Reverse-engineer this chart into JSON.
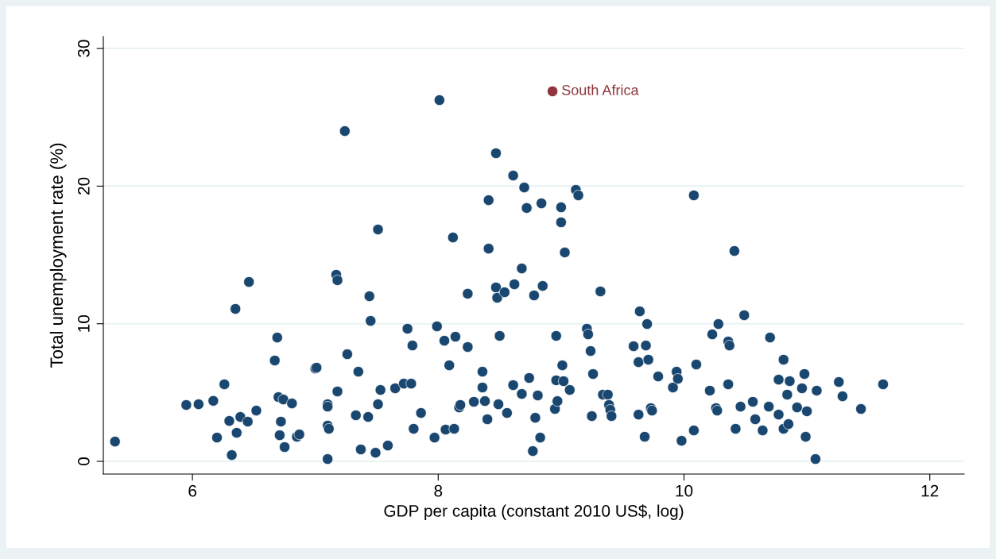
{
  "chart_data": {
    "type": "scatter",
    "xlabel": "GDP per capita (constant 2010 US$, log)",
    "ylabel": "Total unemployment rate (%)",
    "xlim": [
      5.275,
      12.28
    ],
    "ylim": [
      -0.92,
      30.87
    ],
    "xticks": [
      6,
      8,
      10,
      12
    ],
    "yticks": [
      0,
      10,
      20,
      30
    ],
    "grid": "y",
    "marker": "circle",
    "legend": false,
    "series": [
      {
        "color": "#1a476f",
        "x": [
          5.37,
          5.95,
          6.05,
          6.17,
          6.26,
          6.2,
          6.3,
          6.32,
          6.35,
          6.36,
          6.39,
          6.45,
          6.46,
          6.52,
          6.67,
          6.69,
          6.7,
          6.71,
          6.72,
          6.74,
          6.75,
          6.81,
          6.85,
          6.87,
          7.0,
          7.01,
          7.1,
          7.1,
          7.1,
          7.11,
          7.1,
          7.17,
          7.18,
          7.18,
          7.24,
          7.26,
          7.33,
          7.35,
          7.37,
          7.43,
          7.44,
          7.45,
          7.49,
          7.51,
          7.51,
          7.53,
          7.59,
          7.65,
          7.72,
          7.75,
          7.78,
          7.79,
          7.8,
          7.86,
          7.97,
          7.99,
          8.01,
          8.05,
          8.06,
          8.09,
          8.13,
          8.14,
          8.12,
          8.17,
          8.18,
          8.24,
          8.24,
          8.29,
          8.36,
          8.36,
          8.38,
          8.4,
          8.41,
          8.41,
          8.47,
          8.47,
          8.48,
          8.49,
          8.5,
          8.54,
          8.56,
          8.61,
          8.62,
          8.61,
          8.68,
          8.68,
          8.7,
          8.72,
          8.74,
          8.78,
          8.77,
          8.79,
          8.81,
          8.84,
          8.83,
          8.85,
          8.95,
          8.96,
          8.96,
          8.97,
          9.0,
          9.0,
          9.01,
          9.02,
          9.03,
          9.07,
          9.12,
          9.14,
          9.21,
          9.22,
          9.24,
          9.26,
          9.25,
          9.32,
          9.34,
          9.38,
          9.39,
          9.4,
          9.41,
          9.59,
          9.64,
          9.63,
          9.63,
          9.68,
          9.69,
          9.7,
          9.71,
          9.73,
          9.74,
          9.79,
          9.91,
          9.94,
          9.95,
          9.98,
          10.08,
          10.08,
          10.1,
          10.21,
          10.23,
          10.26,
          10.27,
          10.28,
          10.36,
          10.36,
          10.37,
          10.41,
          10.42,
          10.46,
          10.49,
          10.56,
          10.58,
          10.64,
          10.69,
          10.7,
          10.77,
          10.77,
          10.81,
          10.81,
          10.84,
          10.85,
          10.86,
          10.92,
          10.96,
          10.98,
          10.99,
          11.0,
          11.07,
          11.08,
          11.26,
          11.29,
          11.44,
          11.62
        ],
        "values": [
          1.44,
          4.1,
          4.15,
          4.4,
          5.6,
          1.73,
          2.94,
          0.46,
          11.08,
          2.08,
          3.23,
          2.89,
          13.04,
          3.69,
          7.33,
          9.0,
          4.67,
          1.9,
          2.89,
          4.5,
          1.04,
          4.21,
          1.79,
          1.96,
          6.75,
          6.81,
          4.15,
          3.98,
          2.6,
          2.37,
          0.17,
          13.56,
          13.16,
          5.08,
          24.0,
          7.79,
          3.35,
          6.52,
          0.87,
          3.23,
          12.0,
          10.21,
          0.63,
          16.85,
          4.15,
          5.19,
          1.15,
          5.31,
          5.65,
          9.64,
          5.65,
          8.42,
          2.37,
          3.52,
          1.73,
          9.81,
          26.25,
          8.77,
          2.31,
          6.98,
          2.37,
          9.06,
          16.27,
          3.92,
          4.1,
          12.18,
          8.31,
          4.33,
          6.52,
          5.37,
          4.38,
          3.06,
          18.98,
          15.46,
          22.39,
          12.64,
          11.89,
          4.15,
          9.12,
          12.29,
          3.52,
          5.54,
          12.87,
          20.77,
          14.02,
          4.9,
          19.9,
          18.41,
          6.06,
          12.06,
          0.75,
          3.17,
          4.79,
          18.75,
          1.73,
          12.75,
          3.81,
          9.12,
          5.89,
          4.38,
          18.46,
          17.37,
          6.98,
          5.83,
          15.18,
          5.19,
          19.73,
          19.33,
          9.64,
          9.23,
          8.02,
          6.35,
          3.29,
          12.35,
          4.85,
          4.85,
          4.1,
          3.75,
          3.29,
          8.37,
          10.9,
          7.21,
          3.4,
          1.79,
          8.42,
          9.98,
          7.39,
          3.87,
          3.69,
          6.17,
          5.37,
          6.52,
          6.0,
          1.5,
          19.33,
          2.25,
          7.04,
          5.14,
          9.23,
          3.87,
          3.69,
          9.98,
          5.6,
          8.71,
          8.42,
          15.29,
          2.37,
          3.98,
          10.62,
          4.33,
          3.06,
          2.25,
          3.98,
          9.0,
          3.4,
          5.94,
          7.39,
          2.37,
          4.85,
          2.71,
          5.83,
          3.92,
          5.31,
          6.35,
          1.79,
          3.64,
          0.17,
          5.14,
          5.77,
          4.73,
          3.81,
          5.6
        ]
      },
      {
        "name": "South Africa",
        "color": "#90353b",
        "x": [
          8.93
        ],
        "values": [
          26.89
        ]
      }
    ]
  }
}
